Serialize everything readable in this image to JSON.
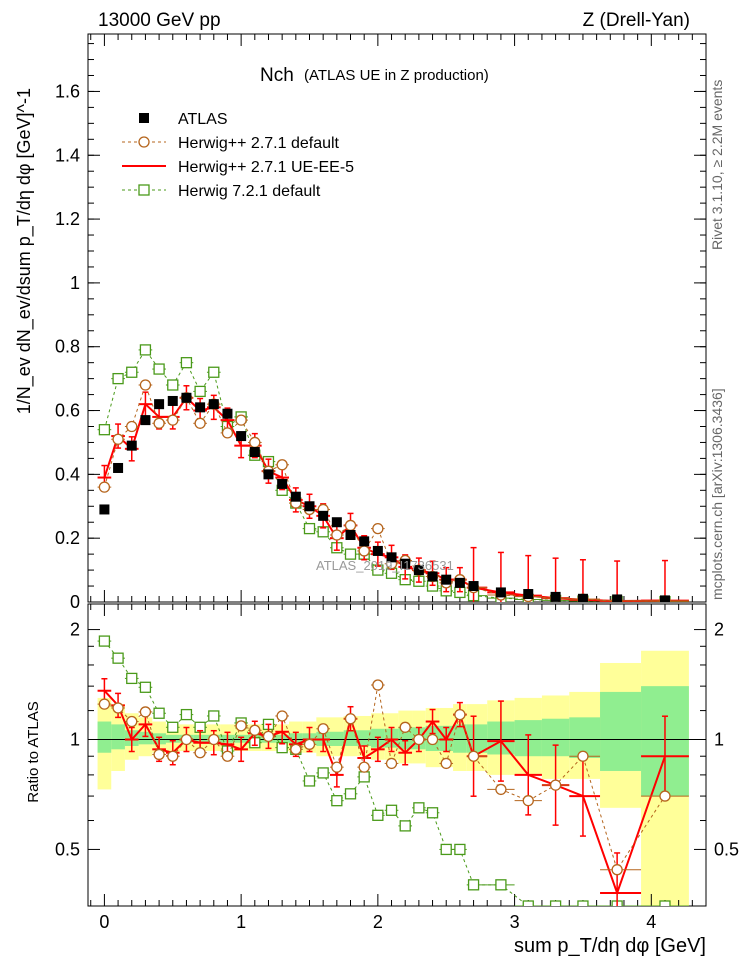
{
  "header": {
    "energy": "13000 GeV pp",
    "process": "Z (Drell-Yan)"
  },
  "side_text": {
    "rivet": "Rivet 3.1.10, ≥ 2.2M events",
    "mcplots": "mcplots.cern.ch [arXiv:1306.3436]"
  },
  "watermark": "ATLAS_2019_I1736531",
  "chart_data": {
    "type": "line",
    "title": "Nch",
    "subtitle": "(ATLAS UE in Z production)",
    "xlabel": "sum p_T/dη dφ [GeV]",
    "ylabel": "1/N_ev dN_ev/dsum p_T/dη dφ [GeV]^-1",
    "ratio_ylabel": "Ratio to ATLAS",
    "xlim": [
      -0.12,
      4.4
    ],
    "ylim": [
      0,
      1.78
    ],
    "ratio_ylim": [
      0.35,
      2.35
    ],
    "x_ticks": [
      "0",
      "1",
      "2",
      "3",
      "4"
    ],
    "y_ticks": [
      "0",
      "0.2",
      "0.4",
      "0.6",
      "0.8",
      "1",
      "1.2",
      "1.4",
      "1.6"
    ],
    "ratio_ticks": [
      "0.5",
      "1",
      "2"
    ],
    "legend_position": "top-left",
    "x": [
      0.0,
      0.1,
      0.2,
      0.3,
      0.4,
      0.5,
      0.6,
      0.7,
      0.8,
      0.9,
      1.0,
      1.1,
      1.2,
      1.3,
      1.4,
      1.5,
      1.6,
      1.7,
      1.8,
      1.9,
      2.0,
      2.1,
      2.2,
      2.3,
      2.4,
      2.5,
      2.6,
      2.7,
      2.9,
      3.1,
      3.3,
      3.5,
      3.75,
      4.1
    ],
    "series": [
      {
        "name": "ATLAS",
        "color": "#000000",
        "values": [
          0.29,
          0.42,
          0.49,
          0.57,
          0.62,
          0.63,
          0.64,
          0.61,
          0.62,
          0.59,
          0.52,
          0.47,
          0.4,
          0.37,
          0.33,
          0.3,
          0.27,
          0.25,
          0.21,
          0.19,
          0.16,
          0.14,
          0.12,
          0.1,
          0.08,
          0.07,
          0.06,
          0.05,
          0.03,
          0.025,
          0.016,
          0.01,
          0.008,
          0.005
        ]
      },
      {
        "name": "Herwig++ 2.7.1 default",
        "color": "#b5651d",
        "values": [
          0.36,
          0.51,
          0.55,
          0.68,
          0.56,
          0.57,
          0.64,
          0.56,
          0.62,
          0.53,
          0.57,
          0.5,
          0.41,
          0.43,
          0.31,
          0.29,
          0.29,
          0.21,
          0.24,
          0.16,
          0.23,
          0.12,
          0.13,
          0.1,
          0.08,
          0.06,
          0.07,
          0.045,
          0.022,
          0.017,
          0.012,
          0.009,
          0.0035,
          0.0035
        ]
      },
      {
        "name": "Herwig++ 2.7.1 UE-EE-5",
        "color": "#ff0000",
        "values": [
          0.39,
          0.52,
          0.48,
          0.62,
          0.58,
          0.58,
          0.64,
          0.6,
          0.61,
          0.57,
          0.49,
          0.49,
          0.41,
          0.39,
          0.32,
          0.3,
          0.27,
          0.2,
          0.24,
          0.17,
          0.15,
          0.14,
          0.11,
          0.1,
          0.09,
          0.07,
          0.07,
          0.045,
          0.03,
          0.02,
          0.012,
          0.007,
          0.003,
          0.0045
        ]
      },
      {
        "name": "Herwig 7.2.1 default",
        "color": "#4a9a1a",
        "values": [
          0.54,
          0.7,
          0.72,
          0.79,
          0.73,
          0.68,
          0.75,
          0.66,
          0.72,
          0.55,
          0.58,
          0.46,
          0.44,
          0.35,
          0.31,
          0.23,
          0.22,
          0.17,
          0.15,
          0.15,
          0.1,
          0.09,
          0.07,
          0.065,
          0.05,
          0.035,
          0.03,
          0.02,
          0.012,
          0.008,
          0.005,
          0.003,
          0.0015,
          0.001
        ]
      }
    ],
    "ratio_series": [
      {
        "name": "Herwig++ 2.7.1 default",
        "values": [
          1.25,
          1.22,
          1.12,
          1.19,
          0.91,
          0.9,
          1.0,
          0.92,
          1.0,
          0.9,
          1.09,
          1.06,
          1.02,
          1.16,
          0.94,
          0.97,
          1.07,
          0.84,
          1.14,
          0.84,
          1.41,
          0.86,
          1.08,
          1.0,
          1.0,
          0.86,
          1.17,
          0.9,
          0.73,
          0.68,
          0.75,
          0.9,
          0.44,
          0.7
        ]
      },
      {
        "name": "Herwig++ 2.7.1 UE-EE-5",
        "values": [
          1.36,
          1.24,
          1.0,
          1.1,
          0.94,
          0.92,
          1.0,
          0.98,
          0.98,
          0.97,
          0.94,
          1.04,
          1.02,
          1.05,
          0.97,
          1.0,
          1.0,
          0.8,
          1.14,
          0.89,
          0.94,
          1.0,
          0.92,
          1.0,
          1.12,
          1.0,
          1.17,
          0.9,
          0.99,
          0.8,
          0.75,
          0.7,
          0.38,
          0.9
        ]
      },
      {
        "name": "Herwig 7.2.1 default",
        "values": [
          1.86,
          1.67,
          1.47,
          1.39,
          1.18,
          1.08,
          1.17,
          1.08,
          1.16,
          0.93,
          1.11,
          0.98,
          1.1,
          0.95,
          0.94,
          0.77,
          0.81,
          0.68,
          0.71,
          0.79,
          0.62,
          0.64,
          0.58,
          0.65,
          0.63,
          0.5,
          0.5,
          0.4,
          0.4,
          0.32,
          0.31,
          0.3,
          0.19,
          0.2
        ]
      }
    ],
    "ratio_band_yellow": [
      [
        0.73,
        1.3
      ],
      [
        0.82,
        1.25
      ],
      [
        0.88,
        1.18
      ],
      [
        0.9,
        1.15
      ],
      [
        0.92,
        1.12
      ],
      [
        0.92,
        1.1
      ],
      [
        0.93,
        1.1
      ],
      [
        0.93,
        1.1
      ],
      [
        0.93,
        1.1
      ],
      [
        0.93,
        1.1
      ],
      [
        0.93,
        1.1
      ],
      [
        0.93,
        1.1
      ],
      [
        0.93,
        1.1
      ],
      [
        0.93,
        1.1
      ],
      [
        0.92,
        1.12
      ],
      [
        0.92,
        1.12
      ],
      [
        0.9,
        1.15
      ],
      [
        0.9,
        1.15
      ],
      [
        0.9,
        1.16
      ],
      [
        0.9,
        1.16
      ],
      [
        0.88,
        1.18
      ],
      [
        0.88,
        1.18
      ],
      [
        0.86,
        1.2
      ],
      [
        0.86,
        1.2
      ],
      [
        0.84,
        1.22
      ],
      [
        0.84,
        1.22
      ],
      [
        0.82,
        1.25
      ],
      [
        0.82,
        1.25
      ],
      [
        0.8,
        1.28
      ],
      [
        0.8,
        1.3
      ],
      [
        0.78,
        1.32
      ],
      [
        0.78,
        1.35
      ],
      [
        0.65,
        1.62
      ],
      [
        0.35,
        1.75
      ]
    ],
    "ratio_band_green": [
      [
        0.92,
        1.12
      ],
      [
        0.94,
        1.1
      ],
      [
        0.96,
        1.06
      ],
      [
        0.97,
        1.05
      ],
      [
        0.97,
        1.04
      ],
      [
        0.98,
        1.03
      ],
      [
        0.98,
        1.03
      ],
      [
        0.98,
        1.03
      ],
      [
        0.98,
        1.03
      ],
      [
        0.98,
        1.03
      ],
      [
        0.98,
        1.03
      ],
      [
        0.98,
        1.03
      ],
      [
        0.98,
        1.03
      ],
      [
        0.98,
        1.03
      ],
      [
        0.97,
        1.04
      ],
      [
        0.97,
        1.04
      ],
      [
        0.96,
        1.05
      ],
      [
        0.96,
        1.05
      ],
      [
        0.96,
        1.06
      ],
      [
        0.96,
        1.06
      ],
      [
        0.95,
        1.07
      ],
      [
        0.95,
        1.07
      ],
      [
        0.94,
        1.08
      ],
      [
        0.94,
        1.08
      ],
      [
        0.93,
        1.09
      ],
      [
        0.93,
        1.09
      ],
      [
        0.92,
        1.1
      ],
      [
        0.92,
        1.1
      ],
      [
        0.91,
        1.12
      ],
      [
        0.9,
        1.13
      ],
      [
        0.9,
        1.14
      ],
      [
        0.89,
        1.15
      ],
      [
        0.82,
        1.35
      ],
      [
        0.7,
        1.4
      ]
    ]
  }
}
